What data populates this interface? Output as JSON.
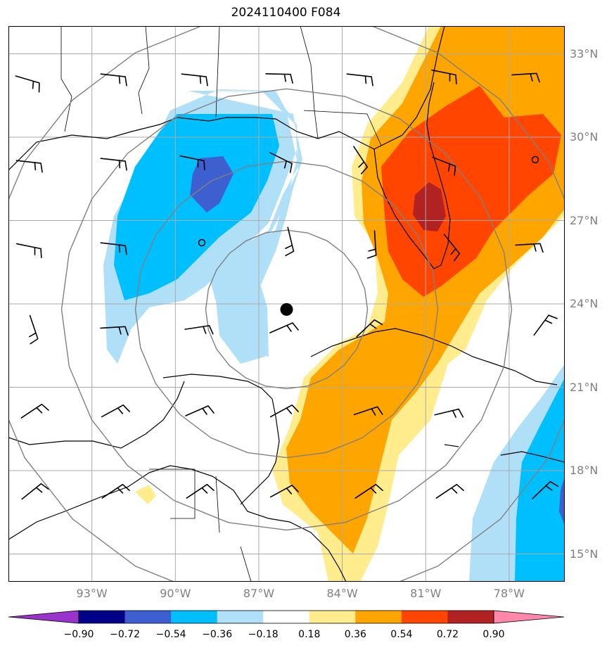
{
  "title": "2024110400 F084",
  "lat_ticks": [
    "33°N",
    "30°N",
    "27°N",
    "24°N",
    "21°N",
    "18°N",
    "15°N"
  ],
  "lon_ticks": [
    "93°W",
    "90°W",
    "87°W",
    "84°W",
    "81°W",
    "78°W"
  ],
  "lat_values": [
    33,
    30,
    27,
    24,
    21,
    18,
    15
  ],
  "lon_values": [
    -93,
    -90,
    -87,
    -84,
    -81,
    -78
  ],
  "extent": {
    "lon_min": -96,
    "lon_max": -76,
    "lat_min": 14,
    "lat_max": 34
  },
  "center": {
    "lat": 23.8,
    "lon": -86
  },
  "colorbar": {
    "labels": [
      "−0.90",
      "−0.72",
      "−0.54",
      "−0.36",
      "−0.18",
      "0.18",
      "0.36",
      "0.54",
      "0.72",
      "0.90"
    ],
    "colors": [
      "#9933cc",
      "#000088",
      "#3d5fcf",
      "#00bfff",
      "#b0e0f8",
      "#ffffff",
      "#ffec8c",
      "#ffa500",
      "#ff4500",
      "#b22222",
      "#ff88aa"
    ]
  },
  "colors": {
    "grid": "#aaaaaa",
    "range_ring": "#808080",
    "coast": "#000000"
  }
}
